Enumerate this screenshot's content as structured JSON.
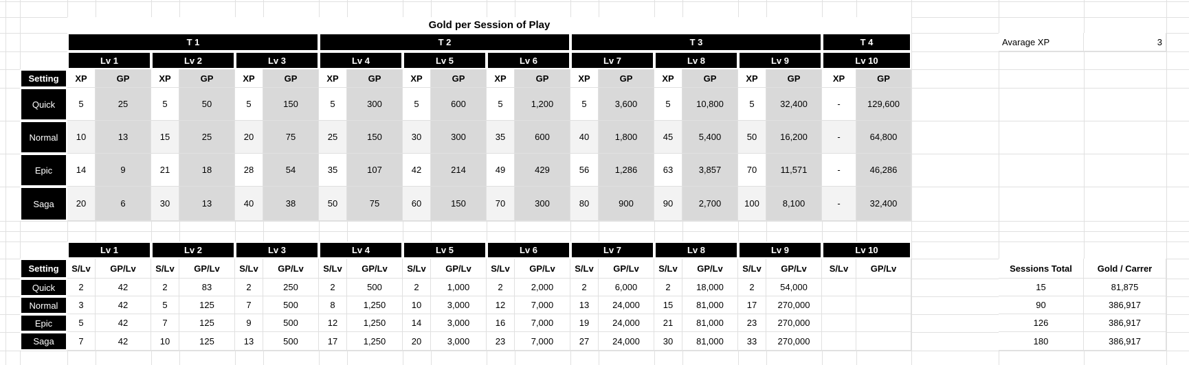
{
  "title": "Gold per Session of Play",
  "avg_xp": {
    "label": "Avarage XP",
    "value": "3"
  },
  "levels": [
    "Lv 1",
    "Lv 2",
    "Lv 3",
    "Lv 4",
    "Lv 5",
    "Lv 6",
    "Lv 7",
    "Lv 8",
    "Lv 9",
    "Lv 10"
  ],
  "table1": {
    "tiers": [
      "T 1",
      "T 2",
      "T 3",
      "T 4"
    ],
    "setting_label": "Setting",
    "col_headers": {
      "xp": "XP",
      "gp": "GP"
    },
    "rows": [
      {
        "setting": "Quick",
        "cells": [
          [
            "5",
            "25"
          ],
          [
            "5",
            "50"
          ],
          [
            "5",
            "150"
          ],
          [
            "5",
            "300"
          ],
          [
            "5",
            "600"
          ],
          [
            "5",
            "1,200"
          ],
          [
            "5",
            "3,600"
          ],
          [
            "5",
            "10,800"
          ],
          [
            "5",
            "32,400"
          ],
          [
            "-",
            "129,600"
          ]
        ]
      },
      {
        "setting": "Normal",
        "cells": [
          [
            "10",
            "13"
          ],
          [
            "15",
            "25"
          ],
          [
            "20",
            "75"
          ],
          [
            "25",
            "150"
          ],
          [
            "30",
            "300"
          ],
          [
            "35",
            "600"
          ],
          [
            "40",
            "1,800"
          ],
          [
            "45",
            "5,400"
          ],
          [
            "50",
            "16,200"
          ],
          [
            "-",
            "64,800"
          ]
        ]
      },
      {
        "setting": "Epic",
        "cells": [
          [
            "14",
            "9"
          ],
          [
            "21",
            "18"
          ],
          [
            "28",
            "54"
          ],
          [
            "35",
            "107"
          ],
          [
            "42",
            "214"
          ],
          [
            "49",
            "429"
          ],
          [
            "56",
            "1,286"
          ],
          [
            "63",
            "3,857"
          ],
          [
            "70",
            "11,571"
          ],
          [
            "-",
            "46,286"
          ]
        ]
      },
      {
        "setting": "Saga",
        "cells": [
          [
            "20",
            "6"
          ],
          [
            "30",
            "13"
          ],
          [
            "40",
            "38"
          ],
          [
            "50",
            "75"
          ],
          [
            "60",
            "150"
          ],
          [
            "70",
            "300"
          ],
          [
            "80",
            "900"
          ],
          [
            "90",
            "2,700"
          ],
          [
            "100",
            "8,100"
          ],
          [
            "-",
            "32,400"
          ]
        ]
      }
    ]
  },
  "table2": {
    "setting_label": "Setting",
    "col_headers": {
      "s": "S/Lv",
      "gp": "GP/Lv"
    },
    "sessions_total_label": "Sessions Total",
    "gold_career_label": "Gold / Carrer",
    "rows": [
      {
        "setting": "Quick",
        "cells": [
          [
            "2",
            "42"
          ],
          [
            "2",
            "83"
          ],
          [
            "2",
            "250"
          ],
          [
            "2",
            "500"
          ],
          [
            "2",
            "1,000"
          ],
          [
            "2",
            "2,000"
          ],
          [
            "2",
            "6,000"
          ],
          [
            "2",
            "18,000"
          ],
          [
            "2",
            "54,000"
          ],
          [
            "",
            ""
          ]
        ],
        "sessions_total": "15",
        "gold_career": "81,875"
      },
      {
        "setting": "Normal",
        "cells": [
          [
            "3",
            "42"
          ],
          [
            "5",
            "125"
          ],
          [
            "7",
            "500"
          ],
          [
            "8",
            "1,250"
          ],
          [
            "10",
            "3,000"
          ],
          [
            "12",
            "7,000"
          ],
          [
            "13",
            "24,000"
          ],
          [
            "15",
            "81,000"
          ],
          [
            "17",
            "270,000"
          ],
          [
            "",
            ""
          ]
        ],
        "sessions_total": "90",
        "gold_career": "386,917"
      },
      {
        "setting": "Epic",
        "cells": [
          [
            "5",
            "42"
          ],
          [
            "7",
            "125"
          ],
          [
            "9",
            "500"
          ],
          [
            "12",
            "1,250"
          ],
          [
            "14",
            "3,000"
          ],
          [
            "16",
            "7,000"
          ],
          [
            "19",
            "24,000"
          ],
          [
            "21",
            "81,000"
          ],
          [
            "23",
            "270,000"
          ],
          [
            "",
            ""
          ]
        ],
        "sessions_total": "126",
        "gold_career": "386,917"
      },
      {
        "setting": "Saga",
        "cells": [
          [
            "7",
            "42"
          ],
          [
            "10",
            "125"
          ],
          [
            "13",
            "500"
          ],
          [
            "17",
            "1,250"
          ],
          [
            "20",
            "3,000"
          ],
          [
            "23",
            "7,000"
          ],
          [
            "27",
            "24,000"
          ],
          [
            "30",
            "81,000"
          ],
          [
            "33",
            "270,000"
          ],
          [
            "",
            ""
          ]
        ],
        "sessions_total": "180",
        "gold_career": "386,917"
      }
    ]
  },
  "colors": {
    "header_fill": "#000000",
    "header_text": "#ffffff",
    "gp_column_fill": "#d9d9d9",
    "banded_row_fill": "#f3f3f3",
    "gridline": "#e0e0e0"
  }
}
